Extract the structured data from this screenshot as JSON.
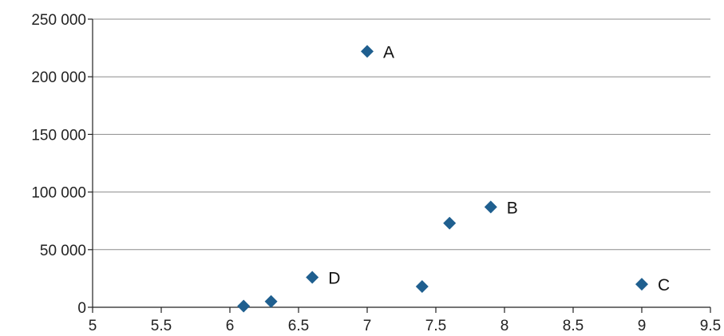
{
  "chart_data": {
    "type": "scatter",
    "title": "",
    "xlabel": "",
    "ylabel": "",
    "xlim": [
      5,
      9.5
    ],
    "ylim": [
      0,
      250000
    ],
    "x_ticks": [
      5,
      5.5,
      6,
      6.5,
      7,
      7.5,
      8,
      8.5,
      9,
      9.5
    ],
    "x_tick_labels": [
      "5",
      "5.5",
      "6",
      "6.5",
      "7",
      "7.5",
      "8",
      "8.5",
      "9",
      "9.5"
    ],
    "y_ticks": [
      0,
      50000,
      100000,
      150000,
      200000,
      250000
    ],
    "y_tick_labels": [
      "0",
      "50 000",
      "100 000",
      "150 000",
      "200 000",
      "250 000"
    ],
    "grid": "horizontal",
    "legend": "none",
    "marker": "diamond",
    "marker_color": "#1f5f8f",
    "points": [
      {
        "x": 6.1,
        "y": 1000,
        "label": ""
      },
      {
        "x": 6.3,
        "y": 5000,
        "label": ""
      },
      {
        "x": 6.6,
        "y": 26000,
        "label": "D"
      },
      {
        "x": 7.0,
        "y": 222000,
        "label": "A"
      },
      {
        "x": 7.4,
        "y": 18000,
        "label": ""
      },
      {
        "x": 7.6,
        "y": 73000,
        "label": ""
      },
      {
        "x": 7.9,
        "y": 87000,
        "label": "B"
      },
      {
        "x": 9.0,
        "y": 20000,
        "label": "C"
      }
    ]
  }
}
